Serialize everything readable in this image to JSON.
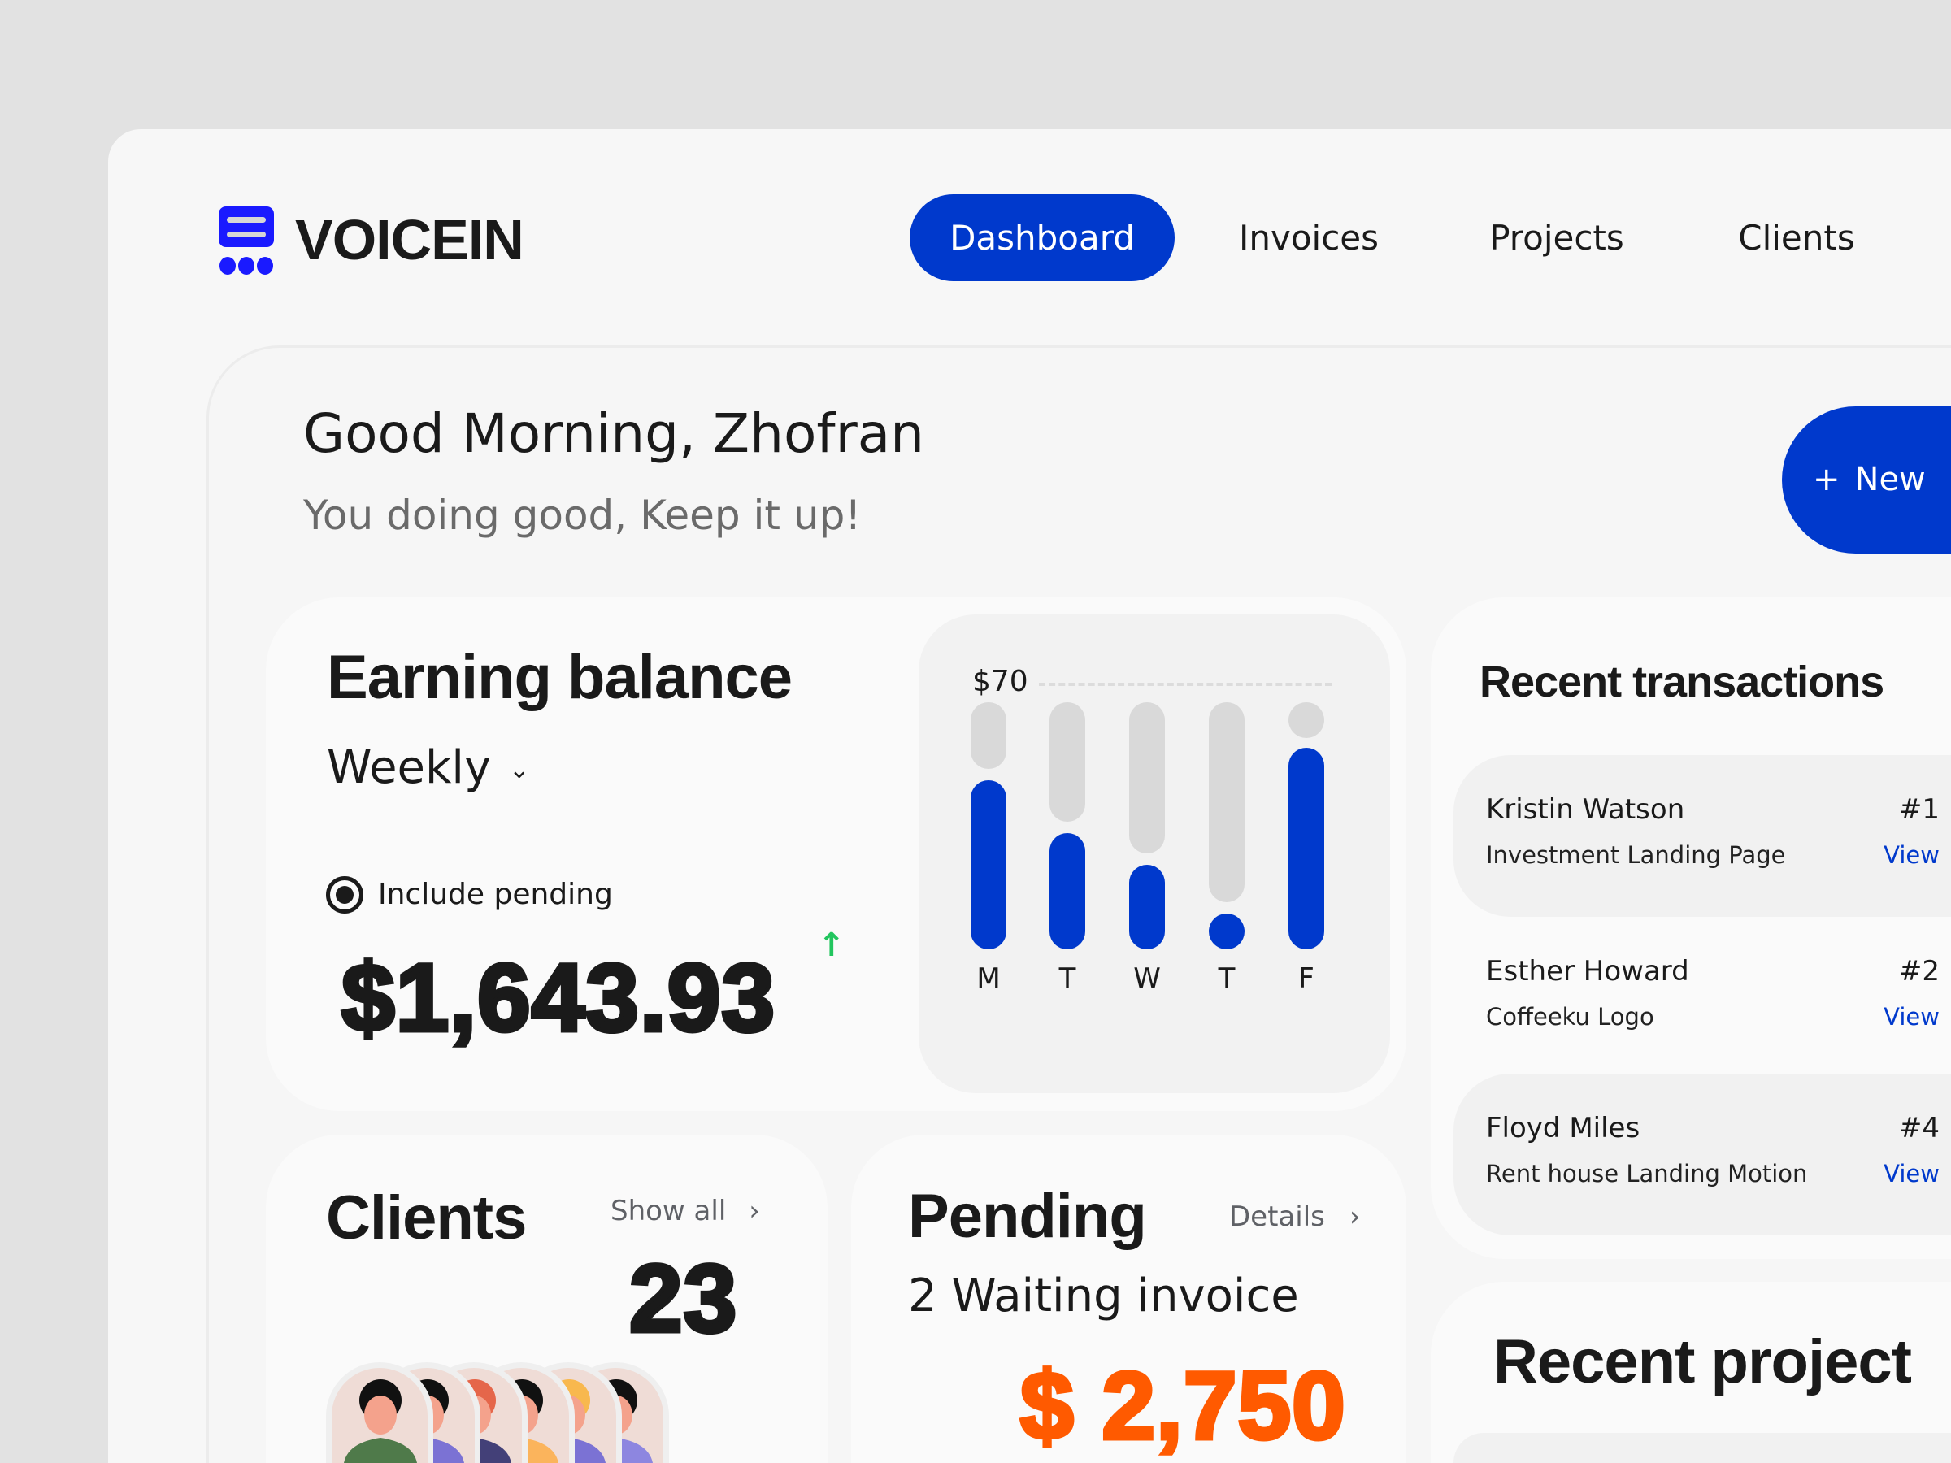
{
  "app": {
    "name": "VOICEIN",
    "logo_icon": "invoice-stack-icon",
    "brand_color": "#1a1aff",
    "accent": "#0039cc"
  },
  "nav": [
    {
      "label": "Dashboard",
      "active": true
    },
    {
      "label": "Invoices"
    },
    {
      "label": "Projects"
    },
    {
      "label": "Clients"
    }
  ],
  "header": {
    "greeting": "Good Morning, Zhofran",
    "subtitle": "You doing good, Keep it up!",
    "new_button": "New",
    "new_icon": "plus-icon"
  },
  "earning": {
    "title": "Earning balance",
    "period": "Weekly",
    "include_pending_label": "Include pending",
    "include_pending": true,
    "amount": "$1,643.93",
    "trend": "up",
    "trend_color": "#22c55e"
  },
  "chart_data": {
    "type": "bar",
    "categories": [
      "M",
      "T",
      "W",
      "T",
      "F"
    ],
    "values": [
      48,
      33,
      24,
      9,
      57
    ],
    "max_label": "$70",
    "ylim": [
      0,
      70
    ],
    "colors": {
      "bar": "#0039cc",
      "track": "#d9d9d9"
    }
  },
  "transactions": {
    "title": "Recent transactions",
    "items": [
      {
        "name": "Kristin Watson",
        "project": "Investment Landing Page",
        "id": "#1",
        "action": "View"
      },
      {
        "name": "Esther Howard",
        "project": "Coffeeku Logo",
        "id": "#2",
        "action": "View"
      },
      {
        "name": "Floyd Miles",
        "project": "Rent house Landing Motion",
        "id": "#4",
        "action": "View"
      }
    ]
  },
  "clients": {
    "title": "Clients",
    "show_all": "Show all",
    "count": "23",
    "avatars": 6
  },
  "pending": {
    "title": "Pending",
    "details": "Details",
    "waiting": "2 Waiting invoice",
    "amount": "$ 2,750",
    "amount_color": "#ff5a00"
  },
  "projects": {
    "title": "Recent project"
  }
}
